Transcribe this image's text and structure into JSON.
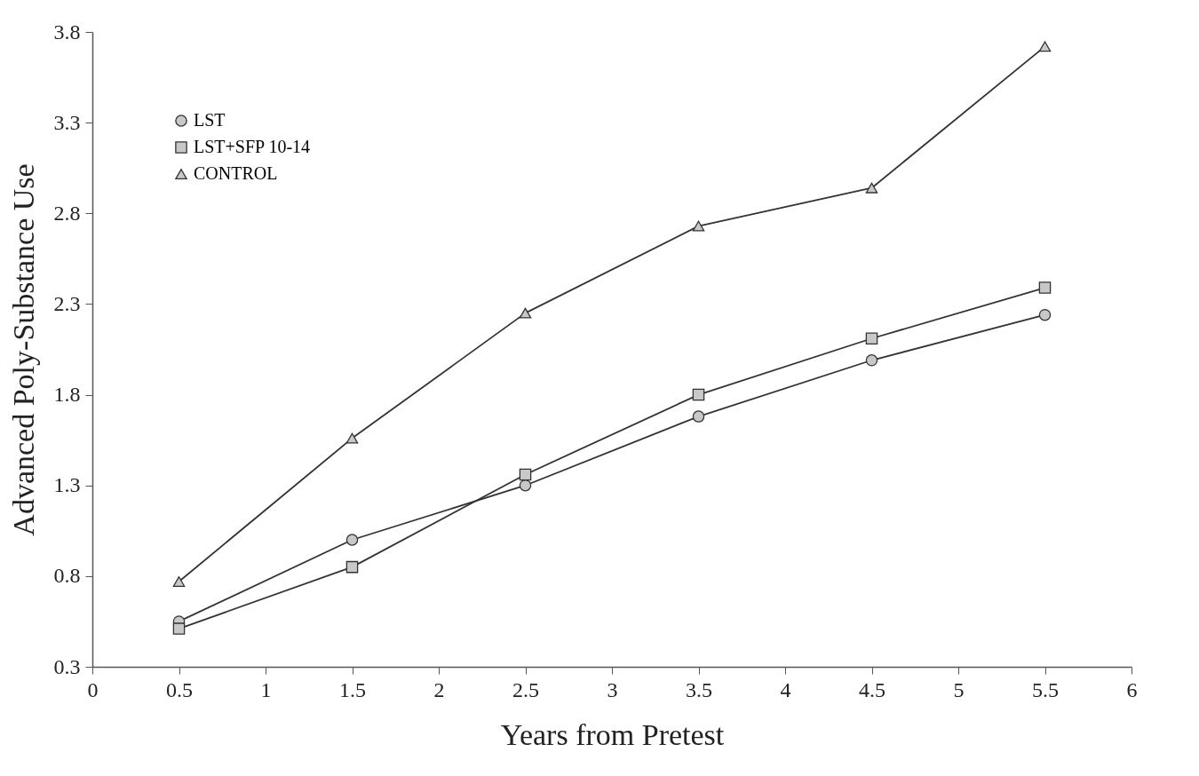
{
  "chart_data": {
    "type": "line",
    "xlabel": "Years from Pretest",
    "ylabel": "Advanced Poly-Substance Use",
    "x": [
      0.5,
      1.5,
      2.5,
      3.5,
      4.5,
      5.5
    ],
    "series": [
      {
        "name": "LST",
        "color": "#333333",
        "marker": "circle",
        "values": [
          0.55,
          1.0,
          1.3,
          1.68,
          1.99,
          2.24
        ]
      },
      {
        "name": "LST+SFP 10-14",
        "color": "#333333",
        "marker": "square",
        "values": [
          0.51,
          0.85,
          1.36,
          1.8,
          2.11,
          2.39
        ]
      },
      {
        "name": "CONTROL",
        "color": "#333333",
        "marker": "triangle",
        "values": [
          0.77,
          1.56,
          2.25,
          2.73,
          2.94,
          3.72
        ]
      }
    ],
    "xlim": [
      0,
      6
    ],
    "xticks": [
      0,
      0.5,
      1,
      1.5,
      2,
      2.5,
      3,
      3.5,
      4,
      4.5,
      5,
      5.5,
      6
    ],
    "ylim": [
      0.3,
      3.8
    ],
    "yticks": [
      0.3,
      0.8,
      1.3,
      1.8,
      2.3,
      2.8,
      3.3,
      3.8
    ],
    "grid": false,
    "legend": "top left",
    "line_style": "solid"
  }
}
